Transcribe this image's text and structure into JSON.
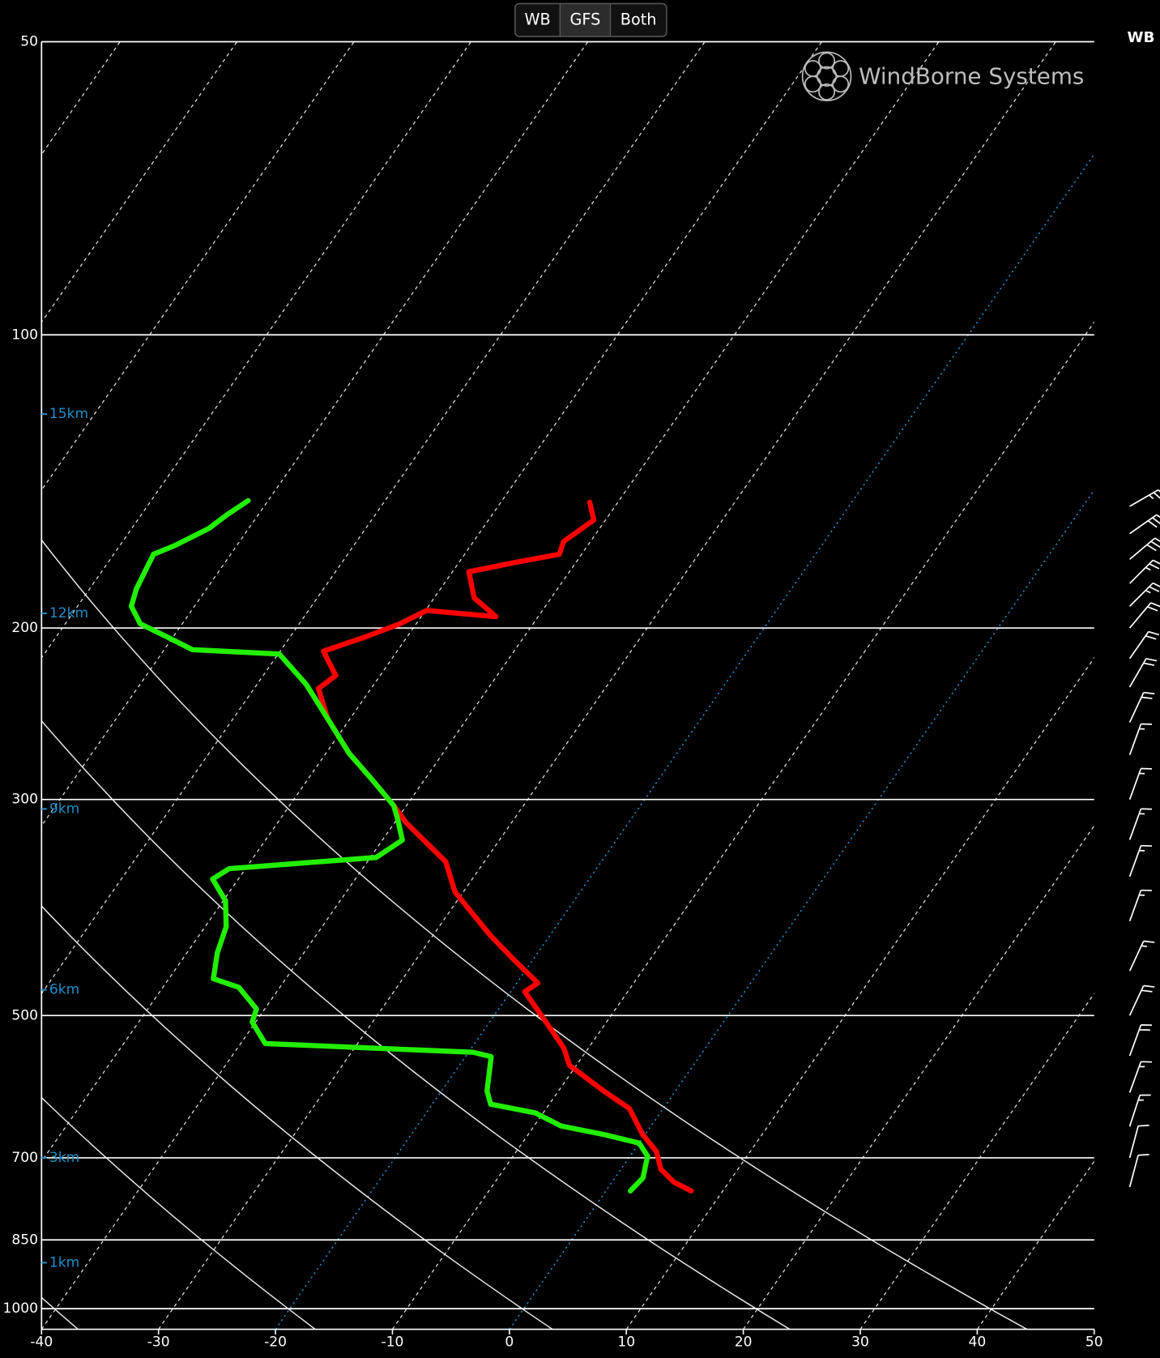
{
  "chart_data": {
    "type": "skew-t",
    "buttons": [
      "WB",
      "GFS",
      "Both"
    ],
    "selected_button": 1,
    "logo": "WindBorne Systems",
    "wind_label": "WB",
    "xlim": [
      -40,
      50
    ],
    "xticks": [
      -40,
      -30,
      -20,
      -10,
      0,
      10,
      20,
      30,
      40,
      50
    ],
    "ylim": [
      1050,
      50
    ],
    "yticks": [
      50,
      100,
      200,
      300,
      500,
      700,
      850,
      1000
    ],
    "log_y": true,
    "grid": true,
    "dry_adiabats": [
      233,
      253,
      273,
      293,
      313
    ],
    "highlight_isotherms": [
      -20,
      0
    ],
    "heights": [
      {
        "label": "15km",
        "pressure": 120.6
      },
      {
        "label": "12km",
        "pressure": 193.2
      },
      {
        "label": "9km",
        "pressure": 306.8
      },
      {
        "label": "6km",
        "pressure": 470.6
      },
      {
        "label": "3km",
        "pressure": 700
      },
      {
        "label": "1km",
        "pressure": 897
      }
    ],
    "series": [
      {
        "color": "#ff0000",
        "pressure": [
          148.6,
          154.9,
          163.0,
          168.0,
          171.5,
          175.1,
          186.2,
          194.7,
          191.9,
          198.0,
          204.1,
          211.3,
          223.8,
          230.8,
          247.9,
          269.1,
          286.2,
          304.3,
          317.0,
          347.6,
          373.4,
          413.7,
          439.9,
          463.0,
          472.6,
          502.5,
          540.0,
          562.4,
          598.0,
          623.0,
          662.5,
          690.0,
          719.0,
          741.5,
          757.0
        ],
        "values": [
          -42.4,
          -41.0,
          -42.3,
          -41.9,
          -45.4,
          -48.6,
          -46.6,
          -43.6,
          -49.9,
          -51.4,
          -53.5,
          -56.3,
          -53.8,
          -54.5,
          -51.9,
          -48.0,
          -44.5,
          -41.1,
          -39.0,
          -33.3,
          -30.7,
          -25.1,
          -21.4,
          -18.2,
          -18.8,
          -15.7,
          -12.1,
          -10.6,
          -6.1,
          -2.9,
          -0.2,
          2.0,
          3.4,
          5.3,
          7.3
        ]
      },
      {
        "color": "#22ee00",
        "pressure": [
          148.0,
          153.2,
          158.0,
          164.6,
          168.0,
          175.1,
          182.4,
          190.0,
          198.0,
          204.1,
          210.5,
          212.7,
          228.5,
          247.9,
          269.1,
          286.2,
          304.3,
          313.8,
          330.2,
          344.1,
          353.3,
          362.1,
          381.2,
          405.3,
          431.0,
          458.3,
          467.8,
          492.4,
          507.7,
          534.3,
          545.4,
          551.1,
          598.0,
          616.7,
          629.4,
          649.2,
          662.5,
          676.1,
          697.2,
          734.1,
          757.0
        ],
        "values": [
          -71.7,
          -72.7,
          -73.4,
          -75.3,
          -76.6,
          -76.3,
          -76.0,
          -75.4,
          -73.6,
          -70.6,
          -67.6,
          -59.9,
          -55.8,
          -51.9,
          -48.0,
          -44.5,
          -41.1,
          -40.0,
          -38.3,
          -39.5,
          -51.4,
          -52.2,
          -49.8,
          -48.2,
          -47.4,
          -46.2,
          -43.5,
          -40.7,
          -40.3,
          -37.9,
          -19.6,
          -17.8,
          -16.1,
          -15.0,
          -10.7,
          -7.7,
          -3.5,
          0.0,
          1.5,
          2.4,
          2.1
        ]
      }
    ],
    "wind": {
      "pressure": [
        150,
        160,
        170,
        180,
        190,
        200,
        215,
        230,
        250,
        270,
        300,
        330,
        360,
        400,
        450,
        500,
        550,
        600,
        650,
        700,
        750
      ],
      "direction": [
        60,
        55,
        50,
        45,
        45,
        40,
        35,
        30,
        25,
        20,
        20,
        20,
        20,
        20,
        25,
        25,
        20,
        20,
        18,
        15,
        15
      ],
      "speed": [
        25,
        30,
        30,
        25,
        25,
        20,
        20,
        20,
        20,
        15,
        15,
        15,
        15,
        15,
        15,
        20,
        20,
        15,
        15,
        10,
        10
      ]
    }
  }
}
